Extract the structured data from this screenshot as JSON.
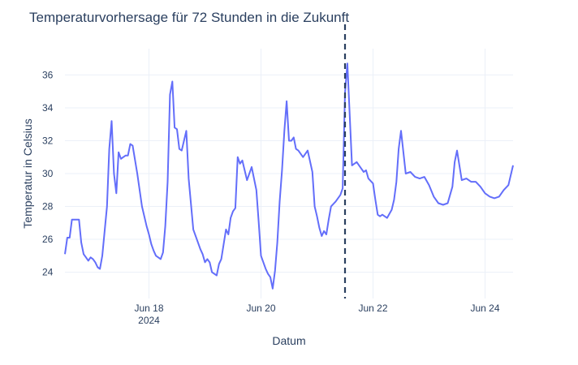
{
  "chart_data": {
    "type": "line",
    "title": "Temperaturvorhersage für 72 Stunden in die Zukunft",
    "xlabel": "Datum",
    "ylabel": "Temperatur in Celsius",
    "x_range": [
      "2024-06-16T12:00",
      "2024-06-24T12:00"
    ],
    "ylim": [
      22.4,
      37.6
    ],
    "grid": true,
    "legend": "none",
    "x_ticks": [
      {
        "date": "2024-06-18T00:00",
        "label": "Jun 18",
        "sublabel": "2024"
      },
      {
        "date": "2024-06-20T00:00",
        "label": "Jun 20",
        "sublabel": ""
      },
      {
        "date": "2024-06-22T00:00",
        "label": "Jun 22",
        "sublabel": ""
      },
      {
        "date": "2024-06-24T00:00",
        "label": "Jun 24",
        "sublabel": ""
      }
    ],
    "y_ticks": [
      24,
      26,
      28,
      30,
      32,
      34,
      36
    ],
    "forecast_start": "2024-06-21T12:00",
    "line_color": "#636efa",
    "marker_line_color": "#2a3f5f",
    "series": [
      {
        "x": [
          "2024-06-16T12:00",
          "2024-06-16T13:00",
          "2024-06-16T14:00",
          "2024-06-16T15:00",
          "2024-06-16T16:00",
          "2024-06-16T17:00",
          "2024-06-16T18:00",
          "2024-06-16T19:00",
          "2024-06-16T20:00",
          "2024-06-16T21:00",
          "2024-06-16T22:00",
          "2024-06-16T23:00",
          "2024-06-17T00:00",
          "2024-06-17T01:00",
          "2024-06-17T02:00",
          "2024-06-17T03:00",
          "2024-06-17T04:00",
          "2024-06-17T06:00",
          "2024-06-17T07:00",
          "2024-06-17T08:00",
          "2024-06-17T09:00",
          "2024-06-17T10:00",
          "2024-06-17T11:00",
          "2024-06-17T12:00",
          "2024-06-17T13:00",
          "2024-06-17T14:00",
          "2024-06-17T15:00",
          "2024-06-17T16:00",
          "2024-06-17T17:00",
          "2024-06-17T19:00",
          "2024-06-17T21:00",
          "2024-06-17T23:00",
          "2024-06-18T00:00",
          "2024-06-18T01:00",
          "2024-06-18T02:00",
          "2024-06-18T03:00",
          "2024-06-18T05:00",
          "2024-06-18T06:00",
          "2024-06-18T07:00",
          "2024-06-18T08:00",
          "2024-06-18T09:00",
          "2024-06-18T10:00",
          "2024-06-18T11:00",
          "2024-06-18T12:00",
          "2024-06-18T13:00",
          "2024-06-18T14:00",
          "2024-06-18T16:00",
          "2024-06-18T17:00",
          "2024-06-18T19:00",
          "2024-06-18T21:00",
          "2024-06-18T22:00",
          "2024-06-18T23:00",
          "2024-06-19T00:00",
          "2024-06-19T01:00",
          "2024-06-19T02:00",
          "2024-06-19T03:00",
          "2024-06-19T05:00",
          "2024-06-19T06:00",
          "2024-06-19T07:00",
          "2024-06-19T08:00",
          "2024-06-19T09:00",
          "2024-06-19T10:00",
          "2024-06-19T11:00",
          "2024-06-19T12:00",
          "2024-06-19T13:00",
          "2024-06-19T14:00",
          "2024-06-19T15:00",
          "2024-06-19T16:00",
          "2024-06-19T18:00",
          "2024-06-19T20:00",
          "2024-06-19T22:00",
          "2024-06-19T23:00",
          "2024-06-20T00:00",
          "2024-06-20T01:00",
          "2024-06-20T02:00",
          "2024-06-20T03:00",
          "2024-06-20T04:00",
          "2024-06-20T05:00",
          "2024-06-20T06:00",
          "2024-06-20T07:00",
          "2024-06-20T08:00",
          "2024-06-20T09:00",
          "2024-06-20T10:00",
          "2024-06-20T11:00",
          "2024-06-20T12:00",
          "2024-06-20T13:00",
          "2024-06-20T14:00",
          "2024-06-20T15:00",
          "2024-06-20T16:00",
          "2024-06-20T18:00",
          "2024-06-20T20:00",
          "2024-06-20T22:00",
          "2024-06-20T23:00",
          "2024-06-21T00:00",
          "2024-06-21T01:00",
          "2024-06-21T02:00",
          "2024-06-21T03:00",
          "2024-06-21T04:00",
          "2024-06-21T05:00",
          "2024-06-21T06:00",
          "2024-06-21T08:00",
          "2024-06-21T10:00",
          "2024-06-21T11:00",
          "2024-06-21T12:00",
          "2024-06-21T13:00",
          "2024-06-21T15:00",
          "2024-06-21T17:00",
          "2024-06-21T19:00",
          "2024-06-21T20:00",
          "2024-06-21T21:00",
          "2024-06-21T22:00",
          "2024-06-22T00:00",
          "2024-06-22T01:00",
          "2024-06-22T02:00",
          "2024-06-22T03:00",
          "2024-06-22T04:00",
          "2024-06-22T06:00",
          "2024-06-22T08:00",
          "2024-06-22T09:00",
          "2024-06-22T10:00",
          "2024-06-22T11:00",
          "2024-06-22T12:00",
          "2024-06-22T14:00",
          "2024-06-22T16:00",
          "2024-06-22T18:00",
          "2024-06-22T20:00",
          "2024-06-22T22:00",
          "2024-06-23T00:00",
          "2024-06-23T02:00",
          "2024-06-23T04:00",
          "2024-06-23T06:00",
          "2024-06-23T08:00",
          "2024-06-23T09:00",
          "2024-06-23T10:00",
          "2024-06-23T11:00",
          "2024-06-23T12:00",
          "2024-06-23T14:00",
          "2024-06-23T16:00",
          "2024-06-23T18:00",
          "2024-06-23T20:00",
          "2024-06-23T22:00",
          "2024-06-24T00:00",
          "2024-06-24T02:00",
          "2024-06-24T04:00",
          "2024-06-24T06:00",
          "2024-06-24T08:00",
          "2024-06-24T10:00",
          "2024-06-24T12:00"
        ],
        "y": [
          25.1,
          26.1,
          26.1,
          27.2,
          27.2,
          27.2,
          27.2,
          25.8,
          25.1,
          24.9,
          24.7,
          24.9,
          24.8,
          24.6,
          24.3,
          24.2,
          25.0,
          28.0,
          31.5,
          33.2,
          30.0,
          28.8,
          31.3,
          30.9,
          31.0,
          31.1,
          31.1,
          31.8,
          31.7,
          30.0,
          28.0,
          26.8,
          26.3,
          25.7,
          25.3,
          25.0,
          24.8,
          25.2,
          26.8,
          29.5,
          34.8,
          35.6,
          32.8,
          32.7,
          31.5,
          31.4,
          32.6,
          29.7,
          26.6,
          25.8,
          25.4,
          25.1,
          24.6,
          24.8,
          24.6,
          24.0,
          23.8,
          24.5,
          24.8,
          25.7,
          26.6,
          26.3,
          27.3,
          27.7,
          27.9,
          31.0,
          30.6,
          30.8,
          29.6,
          30.4,
          29.0,
          27.1,
          25.0,
          24.6,
          24.2,
          23.9,
          23.7,
          23.0,
          24.1,
          25.8,
          28.3,
          30.2,
          32.6,
          34.4,
          32.0,
          32.0,
          32.2,
          31.5,
          31.4,
          31.0,
          31.4,
          30.1,
          28.0,
          27.4,
          26.7,
          26.2,
          26.5,
          26.3,
          27.2,
          28.0,
          28.3,
          28.7,
          29.1,
          34.9,
          36.7,
          30.5,
          30.7,
          30.3,
          30.1,
          30.2,
          29.7,
          29.4,
          28.4,
          27.5,
          27.4,
          27.5,
          27.3,
          27.8,
          28.4,
          29.5,
          31.5,
          32.6,
          30.0,
          30.1,
          29.8,
          29.7,
          29.8,
          29.3,
          28.6,
          28.2,
          28.1,
          28.2,
          28.7,
          29.2,
          30.7,
          31.4,
          29.6,
          29.7,
          29.5,
          29.5,
          29.2,
          28.8,
          28.6,
          28.5,
          28.6,
          29.0,
          29.3,
          30.5
        ]
      }
    ]
  }
}
